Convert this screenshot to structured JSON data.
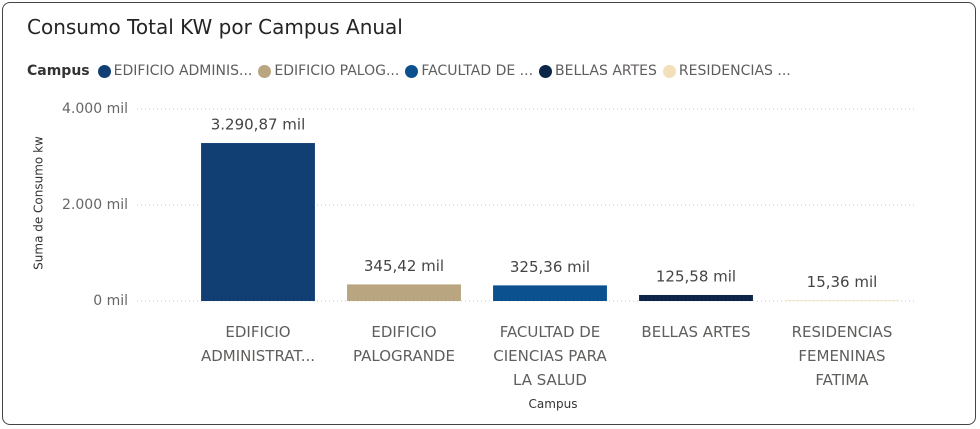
{
  "chart_data": {
    "type": "bar",
    "title": "Consumo Total KW por Campus Anual",
    "legend": {
      "title": "Campus",
      "items": [
        "EDIFICIO ADMINIS...",
        "EDIFICIO PALOG...",
        "FACULTAD DE ...",
        "BELLAS ARTES",
        "RESIDENCIAS ..."
      ]
    },
    "y_label": "Suma de Consumo kw",
    "x_label": "Campus",
    "categories": [
      "EDIFICIO ADMINISTRAT...",
      "EDIFICIO PALOGRANDE",
      "FACULTAD DE CIENCIAS PARA LA SALUD",
      "BELLAS ARTES",
      "RESIDENCIAS FEMENINAS FATIMA"
    ],
    "values": [
      3290.87,
      345.42,
      325.36,
      125.58,
      15.36
    ],
    "value_labels": [
      "3.290,87 mil",
      "345,42 mil",
      "325,36 mil",
      "125,58 mil",
      "15,36 mil"
    ],
    "colors": [
      "#123f73",
      "#b9a57f",
      "#0b5190",
      "#0d2548",
      "#f3e0ba"
    ],
    "ylim": [
      0,
      4000
    ],
    "yticks": [
      {
        "value": 0,
        "label": "0 mil"
      },
      {
        "value": 2000,
        "label": "2.000 mil"
      },
      {
        "value": 4000,
        "label": "4.000 mil"
      }
    ],
    "grid": true
  }
}
